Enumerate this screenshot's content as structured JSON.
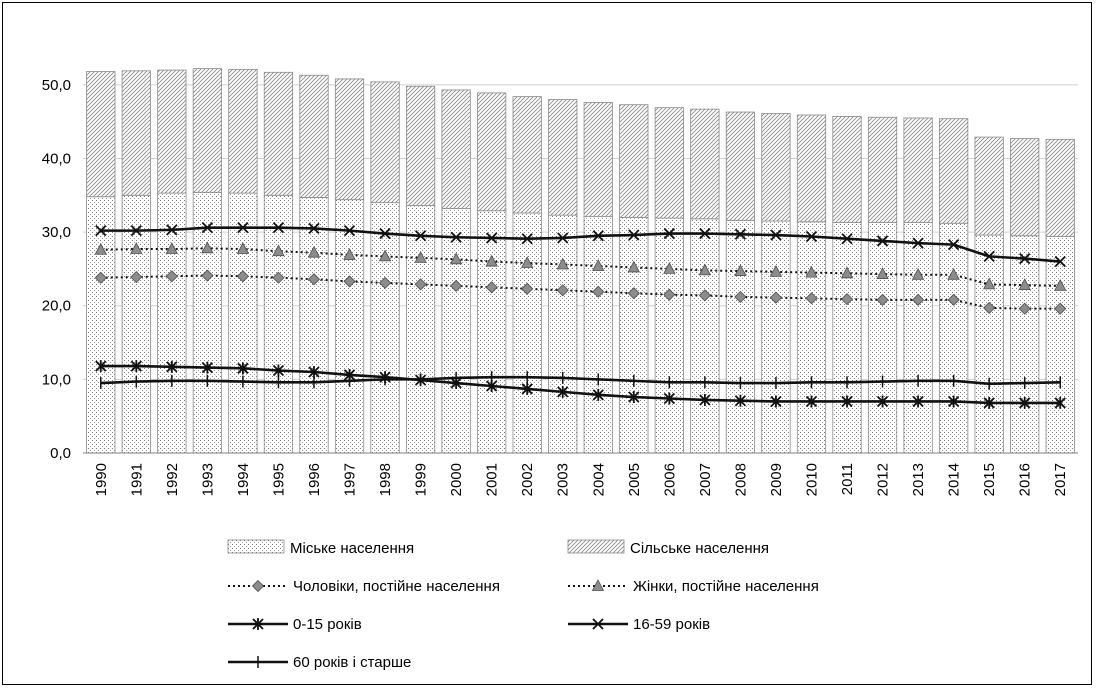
{
  "chart_data": {
    "type": "bar",
    "title": "",
    "xlabel": "",
    "ylabel": "",
    "ylim": [
      0,
      55
    ],
    "y_ticks": [
      "0,0",
      "10,0",
      "20,0",
      "30,0",
      "40,0",
      "50,0"
    ],
    "y_tick_values": [
      0,
      10,
      20,
      30,
      40,
      50
    ],
    "grid": "horizontal",
    "legend_position": "bottom",
    "categories": [
      "1990",
      "1991",
      "1992",
      "1993",
      "1994",
      "1995",
      "1996",
      "1997",
      "1998",
      "1999",
      "2000",
      "2001",
      "2002",
      "2003",
      "2004",
      "2005",
      "2006",
      "2007",
      "2008",
      "2009",
      "2010",
      "2011",
      "2012",
      "2013",
      "2014",
      "2015",
      "2016",
      "2017"
    ],
    "bar_series": [
      {
        "name": "Міське населення",
        "pattern": "dots",
        "values": [
          34.8,
          35.0,
          35.3,
          35.4,
          35.3,
          35.0,
          34.7,
          34.4,
          34.0,
          33.6,
          33.2,
          32.9,
          32.6,
          32.3,
          32.1,
          32.0,
          31.9,
          31.8,
          31.6,
          31.5,
          31.4,
          31.3,
          31.3,
          31.3,
          31.2,
          29.6,
          29.5,
          29.4
        ]
      },
      {
        "name": "Сільське населення",
        "pattern": "hatch",
        "values": [
          17.0,
          16.9,
          16.7,
          16.8,
          16.8,
          16.7,
          16.6,
          16.4,
          16.4,
          16.2,
          16.1,
          16.0,
          15.8,
          15.7,
          15.5,
          15.3,
          15.0,
          14.9,
          14.7,
          14.6,
          14.5,
          14.4,
          14.3,
          14.2,
          14.2,
          13.3,
          13.2,
          13.2
        ]
      }
    ],
    "line_series": [
      {
        "name": "Чоловіки, постійне населення",
        "style": "dotted",
        "marker": "diamond",
        "values": [
          23.8,
          23.9,
          24.0,
          24.1,
          24.0,
          23.8,
          23.6,
          23.3,
          23.1,
          22.9,
          22.7,
          22.5,
          22.3,
          22.1,
          21.9,
          21.7,
          21.5,
          21.4,
          21.2,
          21.1,
          21.0,
          20.9,
          20.8,
          20.8,
          20.8,
          19.7,
          19.6,
          19.6
        ]
      },
      {
        "name": "Жінки, постійне населення",
        "style": "dotted",
        "marker": "triangle",
        "values": [
          27.6,
          27.7,
          27.7,
          27.8,
          27.7,
          27.4,
          27.2,
          26.9,
          26.7,
          26.5,
          26.3,
          26.0,
          25.8,
          25.6,
          25.4,
          25.2,
          25.0,
          24.8,
          24.7,
          24.6,
          24.5,
          24.4,
          24.3,
          24.2,
          24.2,
          22.9,
          22.8,
          22.7
        ]
      },
      {
        "name": "0-15 років",
        "style": "solid",
        "marker": "asterisk",
        "values": [
          11.8,
          11.8,
          11.7,
          11.6,
          11.5,
          11.2,
          11.0,
          10.6,
          10.3,
          9.9,
          9.5,
          9.1,
          8.7,
          8.3,
          7.9,
          7.6,
          7.4,
          7.2,
          7.1,
          7.0,
          7.0,
          7.0,
          7.0,
          7.0,
          7.0,
          6.8,
          6.8,
          6.8
        ]
      },
      {
        "name": "16-59 років",
        "style": "solid",
        "marker": "cross",
        "values": [
          30.2,
          30.2,
          30.3,
          30.6,
          30.6,
          30.6,
          30.5,
          30.2,
          29.8,
          29.5,
          29.3,
          29.2,
          29.1,
          29.2,
          29.5,
          29.6,
          29.8,
          29.8,
          29.7,
          29.6,
          29.4,
          29.1,
          28.8,
          28.5,
          28.3,
          26.7,
          26.4,
          26.0
        ]
      },
      {
        "name": "60 років і старше",
        "style": "solid",
        "marker": "plus",
        "values": [
          9.5,
          9.7,
          9.8,
          9.8,
          9.7,
          9.6,
          9.6,
          9.8,
          10.0,
          10.0,
          10.2,
          10.3,
          10.3,
          10.2,
          10.0,
          9.8,
          9.6,
          9.6,
          9.5,
          9.5,
          9.6,
          9.6,
          9.7,
          9.8,
          9.8,
          9.4,
          9.5,
          9.6
        ]
      }
    ]
  }
}
